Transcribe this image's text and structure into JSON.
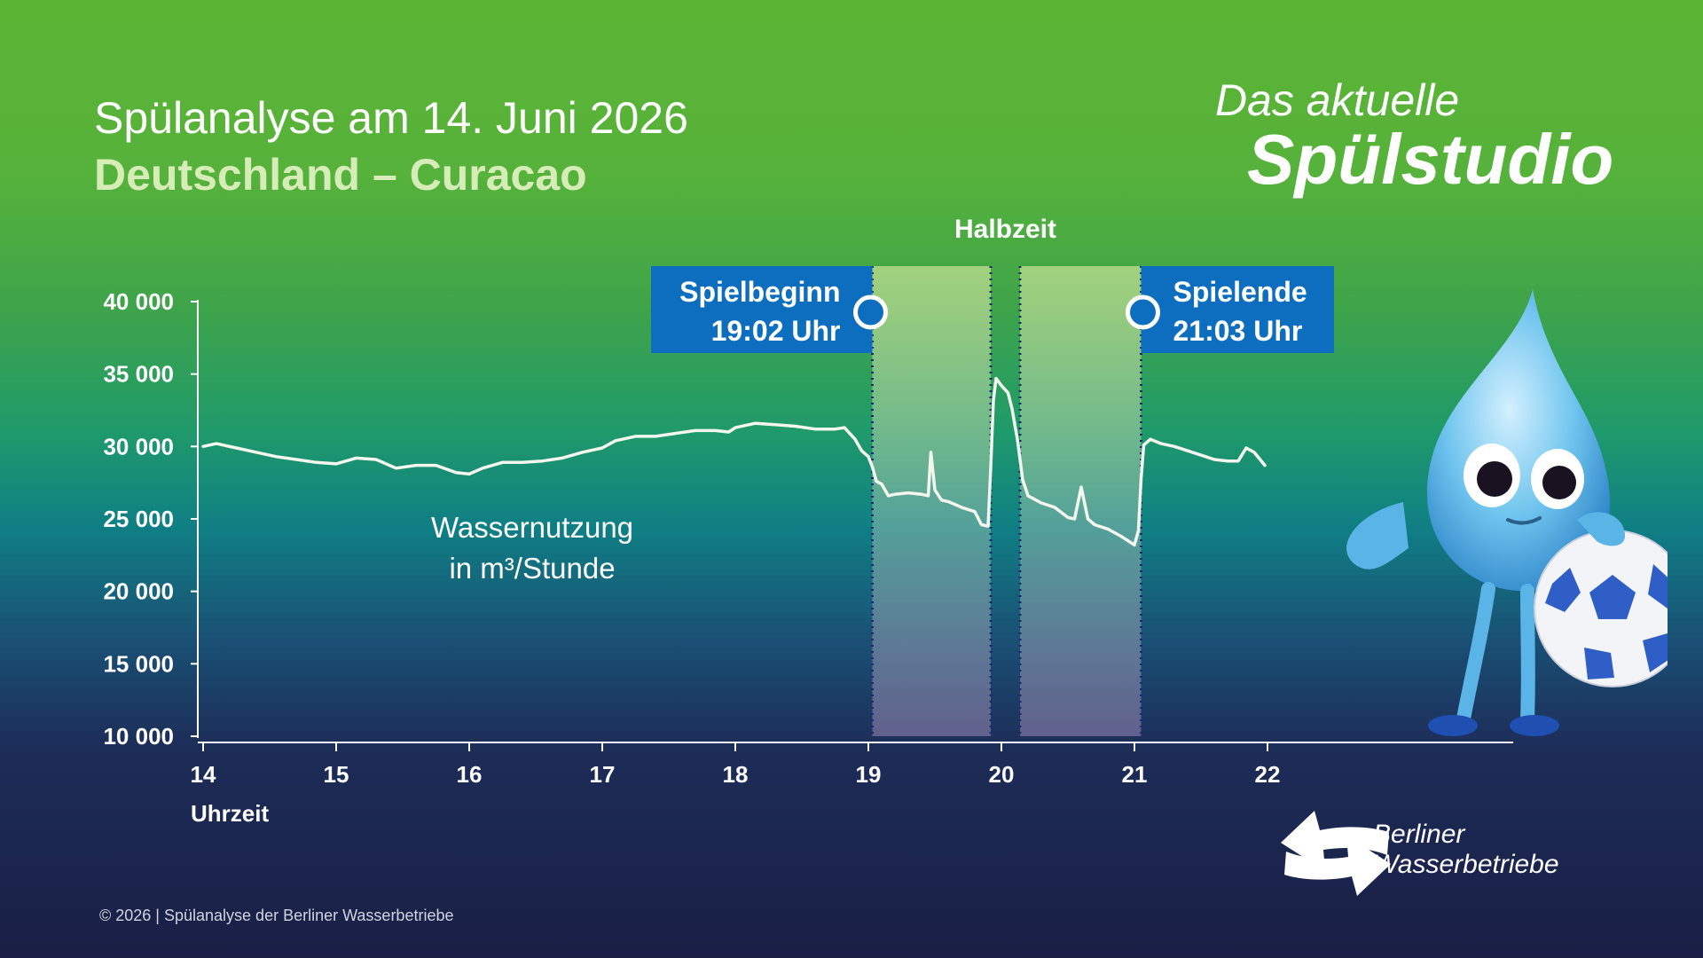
{
  "header": {
    "title": "Spülanalyse am 14. Juni 2026",
    "subtitle": "Deutschland – Curacao"
  },
  "brand": {
    "line1": "Das aktuelle",
    "line2": "Spülstudio"
  },
  "annotations": {
    "halftime": "Halbzeit",
    "start_label": "Spielbeginn",
    "start_time": "19:02 Uhr",
    "end_label": "Spielende",
    "end_time": "21:03 Uhr"
  },
  "series_label": {
    "line1": "Wassernutzung",
    "line2": "in m³/Stunde"
  },
  "footer": "© 2026 | Spülanalyse der Berliner Wasserbetriebe",
  "logo": {
    "line1": "Berliner",
    "line2": "Wasserbetriebe"
  },
  "colors": {
    "accent_blue": "#0d6ebf",
    "halftime_band": "#b4dc8c",
    "line": "#f4f7ee",
    "subtitle": "#d6edb8"
  },
  "chart_data": {
    "type": "line",
    "xlabel": "Uhrzeit",
    "ylabel": "",
    "xlim": [
      14,
      22
    ],
    "ylim": [
      10000,
      40000
    ],
    "xticks": [
      14,
      15,
      16,
      17,
      18,
      19,
      20,
      21,
      22
    ],
    "yticks": [
      10000,
      15000,
      20000,
      25000,
      30000,
      35000,
      40000
    ],
    "ytick_labels": [
      "10 000",
      "15 000",
      "20 000",
      "25 000",
      "30 000",
      "35 000",
      "40 000"
    ],
    "events": {
      "game_start": 19.03,
      "halftime_start": 19.92,
      "halftime_end": 20.14,
      "game_end": 21.05
    },
    "series": [
      {
        "values": [
          [
            14.0,
            30000
          ],
          [
            14.1,
            30200
          ],
          [
            14.25,
            29900
          ],
          [
            14.4,
            29600
          ],
          [
            14.55,
            29300
          ],
          [
            14.7,
            29100
          ],
          [
            14.85,
            28900
          ],
          [
            15.0,
            28800
          ],
          [
            15.15,
            29200
          ],
          [
            15.3,
            29100
          ],
          [
            15.45,
            28500
          ],
          [
            15.6,
            28700
          ],
          [
            15.75,
            28700
          ],
          [
            15.9,
            28200
          ],
          [
            16.0,
            28100
          ],
          [
            16.1,
            28500
          ],
          [
            16.25,
            28900
          ],
          [
            16.4,
            28900
          ],
          [
            16.55,
            29000
          ],
          [
            16.7,
            29200
          ],
          [
            16.85,
            29600
          ],
          [
            17.0,
            29900
          ],
          [
            17.1,
            30400
          ],
          [
            17.25,
            30700
          ],
          [
            17.4,
            30700
          ],
          [
            17.55,
            30900
          ],
          [
            17.7,
            31100
          ],
          [
            17.85,
            31100
          ],
          [
            17.95,
            31000
          ],
          [
            18.0,
            31300
          ],
          [
            18.15,
            31600
          ],
          [
            18.3,
            31500
          ],
          [
            18.45,
            31400
          ],
          [
            18.6,
            31200
          ],
          [
            18.75,
            31200
          ],
          [
            18.82,
            31300
          ],
          [
            18.9,
            30500
          ],
          [
            18.95,
            29700
          ],
          [
            19.0,
            29300
          ],
          [
            19.03,
            28600
          ],
          [
            19.06,
            27600
          ],
          [
            19.1,
            27400
          ],
          [
            19.15,
            26600
          ],
          [
            19.2,
            26700
          ],
          [
            19.3,
            26800
          ],
          [
            19.4,
            26700
          ],
          [
            19.45,
            26600
          ],
          [
            19.47,
            29600
          ],
          [
            19.5,
            27000
          ],
          [
            19.55,
            26300
          ],
          [
            19.6,
            26200
          ],
          [
            19.7,
            25800
          ],
          [
            19.8,
            25500
          ],
          [
            19.85,
            24600
          ],
          [
            19.9,
            24500
          ],
          [
            19.92,
            28600
          ],
          [
            19.94,
            33200
          ],
          [
            19.96,
            34700
          ],
          [
            20.0,
            34200
          ],
          [
            20.05,
            33700
          ],
          [
            20.08,
            32600
          ],
          [
            20.12,
            30500
          ],
          [
            20.16,
            27700
          ],
          [
            20.2,
            26600
          ],
          [
            20.3,
            26100
          ],
          [
            20.4,
            25800
          ],
          [
            20.5,
            25100
          ],
          [
            20.55,
            25000
          ],
          [
            20.6,
            27200
          ],
          [
            20.65,
            25000
          ],
          [
            20.7,
            24600
          ],
          [
            20.8,
            24300
          ],
          [
            20.9,
            23800
          ],
          [
            21.0,
            23200
          ],
          [
            21.03,
            24200
          ],
          [
            21.05,
            27800
          ],
          [
            21.07,
            30100
          ],
          [
            21.12,
            30500
          ],
          [
            21.2,
            30200
          ],
          [
            21.3,
            30000
          ],
          [
            21.4,
            29700
          ],
          [
            21.5,
            29400
          ],
          [
            21.6,
            29100
          ],
          [
            21.7,
            29000
          ],
          [
            21.78,
            29000
          ],
          [
            21.84,
            29900
          ],
          [
            21.9,
            29600
          ],
          [
            21.98,
            28700
          ]
        ]
      }
    ]
  }
}
